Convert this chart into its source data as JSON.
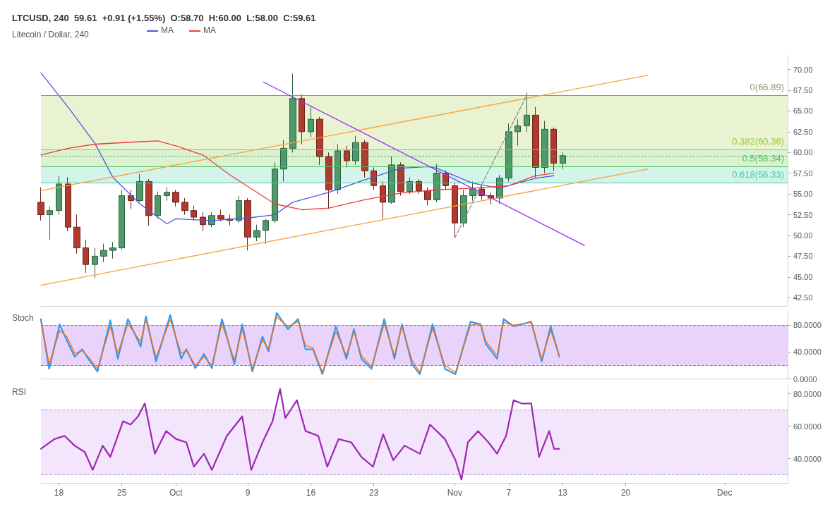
{
  "chart_data": [
    {
      "type": "candlestick",
      "title": "Litecoin / Dollar, 240",
      "subtitle": "LTCUSD, 240  59.61  +0.91 (+1.55%)  O:58.70  H:60.00  L:58.00  C:59.61",
      "x": [
        "--09-16",
        "--09-17",
        "--09-18",
        "--09-19",
        "--09-20",
        "--09-21",
        "--09-22",
        "--09-23",
        "--09-24",
        "--09-25",
        "--09-26",
        "--09-27",
        "--09-28",
        "--09-29",
        "--09-30",
        "--10-01",
        "--10-02",
        "--10-03",
        "--10-04",
        "--10-05",
        "--10-06",
        "--10-07",
        "--10-08",
        "--10-09",
        "--10-10",
        "--10-11",
        "--10-12",
        "--10-13",
        "--10-14",
        "--10-15",
        "--10-16",
        "--10-17",
        "--10-18",
        "--10-19",
        "--10-20",
        "--10-21",
        "--10-22",
        "--10-23",
        "--10-24",
        "--10-25",
        "--10-26",
        "--10-27",
        "--10-28",
        "--10-29",
        "--10-30",
        "--10-31",
        "--11-01",
        "--11-02",
        "--11-03",
        "--11-04",
        "--11-05",
        "--11-06",
        "--11-07",
        "--11-08",
        "--11-09",
        "--11-10",
        "--11-11",
        "--11-12",
        "--11-13"
      ],
      "ohlc": [
        [
          54,
          55.8,
          51.8,
          52.5
        ],
        [
          52.5,
          53.5,
          49.5,
          53
        ],
        [
          53,
          57.2,
          52.5,
          56.2
        ],
        [
          56.2,
          57,
          50.5,
          51
        ],
        [
          51,
          52.5,
          47.8,
          48.5
        ],
        [
          48.5,
          49.5,
          45.5,
          46.5
        ],
        [
          46.5,
          48.5,
          44.9,
          47.5
        ],
        [
          47.5,
          49,
          46.8,
          48.2
        ],
        [
          48.2,
          49.2,
          47.2,
          48.5
        ],
        [
          48.5,
          55.5,
          48.3,
          54.8
        ],
        [
          54.8,
          55.5,
          53.2,
          54.2
        ],
        [
          54.2,
          57.4,
          54,
          56.5
        ],
        [
          56.5,
          56.8,
          51.2,
          52.4
        ],
        [
          52.4,
          55.3,
          52,
          54.8
        ],
        [
          54.8,
          55.8,
          54.2,
          55.2
        ],
        [
          55.2,
          55.5,
          53.5,
          54
        ],
        [
          54,
          54.5,
          52.5,
          53
        ],
        [
          53,
          53.6,
          51.8,
          52.2
        ],
        [
          52.2,
          52.8,
          50.5,
          51.3
        ],
        [
          51.3,
          52.8,
          51,
          52.4
        ],
        [
          52.4,
          53.1,
          51.7,
          52
        ],
        [
          52,
          52.5,
          51.2,
          51.8
        ],
        [
          51.8,
          54.8,
          51.5,
          54.2
        ],
        [
          54.2,
          54.5,
          48.2,
          49.8
        ],
        [
          49.8,
          51.3,
          49.3,
          50.6
        ],
        [
          50.6,
          52,
          49,
          51.8
        ],
        [
          51.8,
          58.8,
          51.5,
          58
        ],
        [
          58,
          61.5,
          56.5,
          60.5
        ],
        [
          60.5,
          69.5,
          60,
          66.5
        ],
        [
          66.5,
          67,
          61,
          62.5
        ],
        [
          62.5,
          65.5,
          61.8,
          64
        ],
        [
          64,
          64.3,
          58.5,
          59.5
        ],
        [
          59.5,
          60,
          53.2,
          55.5
        ],
        [
          55.5,
          61,
          55,
          60.2
        ],
        [
          60.2,
          60.8,
          58.2,
          59
        ],
        [
          59,
          62,
          58.5,
          61.2
        ],
        [
          61.2,
          61.5,
          57,
          57.8
        ],
        [
          57.8,
          58.2,
          55.5,
          56
        ],
        [
          56,
          56.5,
          52,
          54
        ],
        [
          54,
          59.5,
          53.8,
          58.5
        ],
        [
          58.5,
          58.8,
          54.8,
          55.3
        ],
        [
          55.3,
          57,
          55,
          56.5
        ],
        [
          56.5,
          56.8,
          55,
          55.4
        ],
        [
          55.4,
          55.8,
          53.6,
          54.3
        ],
        [
          54.3,
          58.6,
          54,
          57.5
        ],
        [
          57.5,
          57.8,
          55.5,
          56
        ],
        [
          56,
          56.3,
          49.7,
          51.5
        ],
        [
          51.5,
          55.5,
          51,
          54.8
        ],
        [
          54.8,
          56.5,
          54.2,
          55.6
        ],
        [
          55.6,
          56,
          54.3,
          54.8
        ],
        [
          54.8,
          55.2,
          53.7,
          54.5
        ],
        [
          54.5,
          57.3,
          53.8,
          56.9
        ],
        [
          56.9,
          63.5,
          56.5,
          62.5
        ],
        [
          62.5,
          64,
          60.8,
          63.2
        ],
        [
          63.2,
          67.2,
          62.5,
          64.5
        ],
        [
          64.5,
          65.5,
          57,
          58.2
        ],
        [
          58.2,
          63.8,
          57.5,
          62.8
        ],
        [
          62.8,
          63,
          57.8,
          58.7
        ],
        [
          58.7,
          60,
          58,
          59.61
        ]
      ],
      "series": [
        {
          "type": "line",
          "name": "MA",
          "color": "#4a5bdc",
          "x": [
            "--09-16",
            "--09-19",
            "--09-22",
            "--09-24",
            "--09-27",
            "--09-30",
            "--10-01",
            "--10-05",
            "--10-09",
            "--10-12",
            "--10-14",
            "--10-18",
            "--10-22",
            "--10-26",
            "--10-29",
            "--10-30",
            "--11-03",
            "--11-06",
            "--11-07",
            "--11-10",
            "--11-12"
          ],
          "values": [
            69.6,
            65.5,
            61.1,
            57,
            53.8,
            51.4,
            52,
            51.8,
            52.1,
            52.5,
            54,
            55.2,
            56.7,
            58.1,
            58.3,
            58.1,
            56.3,
            55.7,
            56,
            56.9,
            57.2
          ]
        },
        {
          "type": "line",
          "name": "MA",
          "color": "#f03c3c",
          "x": [
            "--09-16",
            "--09-19",
            "--09-22",
            "--09-27",
            "--09-29",
            "--10-01",
            "--10-04",
            "--10-07",
            "--10-10",
            "--10-12",
            "--10-15",
            "--10-18",
            "--10-22",
            "--10-26",
            "--10-30",
            "--11-03",
            "--11-07",
            "--11-10",
            "--11-12"
          ],
          "values": [
            59.7,
            60.5,
            61,
            61.3,
            61.4,
            60.8,
            59.7,
            57.3,
            55.2,
            53.8,
            53.1,
            53.3,
            54.3,
            55.1,
            55.5,
            55.7,
            56,
            57.2,
            57.5
          ]
        },
        {
          "type": "line",
          "color": "#f7a33a",
          "x": [
            "--09-16",
            "--11-22T10:00"
          ],
          "values": [
            55.4,
            69.3
          ]
        },
        {
          "type": "line",
          "color": "#f7a33a",
          "x": [
            "--09-16",
            "--11-22T10:00"
          ],
          "values": [
            44,
            58
          ]
        },
        {
          "type": "line",
          "color": "#9b30ff",
          "x": [
            "--10-10T17:00",
            "--11-15T10:00"
          ],
          "values": [
            68.5,
            48.8
          ]
        },
        {
          "type": "line",
          "color": "#8c8c8c",
          "line_style": "dashed",
          "x": [
            "--11-01",
            "--11-09"
          ],
          "values": [
            49.7,
            66.89
          ]
        }
      ],
      "ref_lines": [
        {
          "axis": "y",
          "value": 66.89,
          "label": "0(66.89)",
          "color": "#8e9678"
        },
        {
          "axis": "y",
          "value": 60.36,
          "label": "0.382(60.36)",
          "color": "#98c93c"
        },
        {
          "axis": "y",
          "value": 58.34,
          "label": "0.5(58.34)",
          "color": "#4fc35f"
        },
        {
          "axis": "y",
          "value": 56.33,
          "label": "0.618(56.33)",
          "color": "#4cc9a0"
        },
        {
          "axis": "y",
          "value": 59.61,
          "label": null,
          "color": "#4e9a6a",
          "line_style": "dotted"
        }
      ],
      "bands": [
        {
          "axis": "y",
          "from": 60.36,
          "to": 66.89,
          "color": "#eaf3d1"
        },
        {
          "axis": "y",
          "from": 58.34,
          "to": 60.36,
          "color": "#daf2cf"
        },
        {
          "axis": "y",
          "from": 56.33,
          "to": 58.34,
          "color": "#d3f4ea"
        }
      ],
      "xlim": [
        "--09-16",
        "--12-08"
      ],
      "xticks": [
        {
          "value": "--09-18",
          "label": "18"
        },
        {
          "value": "--09-25",
          "label": "25"
        },
        {
          "value": "--10-01",
          "label": "Oct"
        },
        {
          "value": "--10-09",
          "label": "9"
        },
        {
          "value": "--10-16",
          "label": "16"
        },
        {
          "value": "--10-23",
          "label": "23"
        },
        {
          "value": "--11-01",
          "label": "Nov"
        },
        {
          "value": "--11-07",
          "label": "7"
        },
        {
          "value": "--11-13",
          "label": "13"
        },
        {
          "value": "--11-20",
          "label": "20"
        },
        {
          "value": "--12-01",
          "label": "Dec"
        }
      ],
      "ylim": [
        41.5,
        71.75
      ],
      "yticks": [
        {
          "value": 42.5,
          "label": "42.50"
        },
        {
          "value": 45,
          "label": "45.00"
        },
        {
          "value": 47.5,
          "label": "47.50"
        },
        {
          "value": 50,
          "label": "50.00"
        },
        {
          "value": 52.5,
          "label": "52.50"
        },
        {
          "value": 55,
          "label": "55.00"
        },
        {
          "value": 57.5,
          "label": "57.50"
        },
        {
          "value": 60,
          "label": "60.00"
        },
        {
          "value": 62.5,
          "label": "62.50"
        },
        {
          "value": 65,
          "label": "65.00"
        },
        {
          "value": 67.5,
          "label": "67.50"
        },
        {
          "value": 70,
          "label": "70.00"
        }
      ],
      "tick_labels": "y",
      "legend": "top left"
    },
    {
      "type": "line",
      "title": "Stoch",
      "x": [
        "--09-16T00:00",
        "--09-16T22:00",
        "--09-18T02:00",
        "--09-18T22:00",
        "--09-19T18:00",
        "--09-20T14:00",
        "--09-21T11:00",
        "--09-22T07:00",
        "--09-23T17:00",
        "--09-24T13:00",
        "--09-25T16:00",
        "--09-27T02:00",
        "--09-27T16:00",
        "--09-28T19:00",
        "--09-30T09:00",
        "--10-01T14:00",
        "--10-02T04:00",
        "--10-03T04:00",
        "--10-04T03:00",
        "--10-05T00:00",
        "--10-06T03:00",
        "--10-07T12:00",
        "--10-08T09:00",
        "--10-09T12:00",
        "--10-10T15:00",
        "--10-11T07:00",
        "--10-12T05:00",
        "--10-13T11:00",
        "--10-14T14:00",
        "--10-15T10:00",
        "--10-16T06:00",
        "--10-17T07:00",
        "--10-18T19:00",
        "--10-19T23:00",
        "--10-20T19:00",
        "--10-21T15:00",
        "--10-22T18:00",
        "--10-24T04:00",
        "--10-25T07:00",
        "--10-26T03:00",
        "--10-27T06:00",
        "--10-28T03:00",
        "--10-29T13:00",
        "--10-30T22:00",
        "--11-01T02:00",
        "--11-02T18:00",
        "--11-03T21:00",
        "--11-04T11:00",
        "--11-05T17:00",
        "--11-06T10:00",
        "--11-07T13:00",
        "--11-09T12:00",
        "--11-10T16:00",
        "--11-11T16:00",
        "--11-12T15:00"
      ],
      "series": [
        {
          "color": "#2b9af3",
          "values": [
            89,
            15,
            81,
            56,
            33,
            44,
            26,
            11,
            87,
            30,
            89,
            48,
            93,
            26,
            95,
            30,
            44,
            16,
            37,
            16,
            89,
            22,
            81,
            11,
            63,
            41,
            98,
            74,
            89,
            44,
            44,
            7,
            78,
            30,
            74,
            30,
            15,
            89,
            30,
            81,
            22,
            7,
            81,
            15,
            7,
            85,
            81,
            52,
            30,
            89,
            78,
            85,
            26,
            78,
            33
          ]
        },
        {
          "color": "#ff6d00",
          "values": [
            85,
            22,
            72,
            62,
            38,
            42,
            30,
            15,
            78,
            38,
            82,
            55,
            88,
            32,
            88,
            38,
            42,
            20,
            33,
            20,
            82,
            28,
            74,
            15,
            58,
            45,
            92,
            78,
            85,
            50,
            46,
            10,
            70,
            35,
            70,
            35,
            18,
            82,
            35,
            78,
            28,
            10,
            75,
            20,
            10,
            80,
            82,
            56,
            35,
            84,
            80,
            84,
            30,
            72,
            35
          ]
        }
      ],
      "ref_lines": [
        {
          "axis": "y",
          "value": 80,
          "label": null,
          "color": "#8c7aa0",
          "line_style": "dashed"
        },
        {
          "axis": "y",
          "value": 20,
          "label": null,
          "color": "#8c7aa0",
          "line_style": "dashed"
        }
      ],
      "bands": [
        {
          "axis": "y",
          "from": 20,
          "to": 80,
          "color": "#ead3fb"
        }
      ],
      "xlim": [
        "--09-16",
        "--12-08"
      ],
      "xticks": [
        {
          "value": "--09-18",
          "label": "18"
        },
        {
          "value": "--09-25",
          "label": "25"
        },
        {
          "value": "--10-01",
          "label": "Oct"
        },
        {
          "value": "--10-09",
          "label": "9"
        },
        {
          "value": "--10-16",
          "label": "16"
        },
        {
          "value": "--10-23",
          "label": "23"
        },
        {
          "value": "--11-01",
          "label": "Nov"
        },
        {
          "value": "--11-07",
          "label": "7"
        },
        {
          "value": "--11-13",
          "label": "13"
        },
        {
          "value": "--11-20",
          "label": "20"
        },
        {
          "value": "--12-01",
          "label": "Dec"
        }
      ],
      "ylim": [
        0,
        100
      ],
      "yticks": [
        {
          "value": 0,
          "label": "0.0000"
        },
        {
          "value": 40,
          "label": "40.0000"
        },
        {
          "value": 80,
          "label": "80.0000"
        }
      ],
      "tick_labels": "y"
    },
    {
      "type": "line",
      "title": "RSI",
      "x": [
        "--09-16T00:00",
        "--09-17T12:00",
        "--09-18T15:00",
        "--09-19T18:00",
        "--09-20T21:00",
        "--09-21T18:00",
        "--09-22T21:00",
        "--09-23T17:00",
        "--09-25T03:00",
        "--09-25T23:00",
        "--09-26T19:00",
        "--09-27T13:00",
        "--09-28T16:00",
        "--09-29T22:00",
        "--10-01T01:00",
        "--10-02T04:00",
        "--10-03T00:00",
        "--10-04T03:00",
        "--10-05T00:00",
        "--10-06T16:00",
        "--10-08T09:00",
        "--10-09T09:00",
        "--10-10T15:00",
        "--10-11T18:00",
        "--10-12T14:00",
        "--10-13T04:00",
        "--10-14T11:00",
        "--10-15T10:00",
        "--10-16T20:00",
        "--10-17T20:00",
        "--10-19T02:00",
        "--10-20T12:00",
        "--10-21T15:00",
        "--10-22T22:00",
        "--10-24T01:00",
        "--10-25T04:00",
        "--10-26T10:00",
        "--10-28T03:00",
        "--10-29T06:00",
        "--10-30T22:00",
        "--11-01T02:00",
        "--11-01T18:00",
        "--11-02T11:00",
        "--11-03T14:00",
        "--11-04T18:00",
        "--11-05T17:00",
        "--11-06T17:00",
        "--11-07T13:00",
        "--11-08T10:00",
        "--11-09T12:00",
        "--11-10T09:00",
        "--11-11T12:00",
        "--11-12T01:00",
        "--11-12T15:00"
      ],
      "series": [
        {
          "color": "#9c27b0",
          "values": [
            46,
            52,
            54,
            48,
            44,
            33,
            48,
            41,
            63,
            61,
            66,
            74,
            43,
            57,
            52,
            50,
            35,
            43,
            33,
            54,
            66,
            33,
            50,
            63,
            83,
            65,
            76,
            57,
            54,
            35,
            52,
            50,
            41,
            35,
            55,
            39,
            48,
            43,
            61,
            52,
            39,
            27,
            50,
            57,
            50,
            43,
            54,
            76,
            74,
            74,
            41,
            57,
            46,
            46
          ]
        }
      ],
      "ref_lines": [
        {
          "axis": "y",
          "value": 70,
          "label": null,
          "color": "#b59ac4",
          "line_style": "dashed"
        },
        {
          "axis": "y",
          "value": 30,
          "label": null,
          "color": "#b59ac4",
          "line_style": "dashed"
        }
      ],
      "bands": [
        {
          "axis": "y",
          "from": 30,
          "to": 70,
          "color": "#f3e5fc"
        }
      ],
      "xlim": [
        "--09-16",
        "--12-08"
      ],
      "xticks": [
        {
          "value": "--09-18",
          "label": "18"
        },
        {
          "value": "--09-25",
          "label": "25"
        },
        {
          "value": "--10-01",
          "label": "Oct"
        },
        {
          "value": "--10-09",
          "label": "9"
        },
        {
          "value": "--10-16",
          "label": "16"
        },
        {
          "value": "--10-23",
          "label": "23"
        },
        {
          "value": "--11-01",
          "label": "Nov"
        },
        {
          "value": "--11-07",
          "label": "7"
        },
        {
          "value": "--11-13",
          "label": "13"
        },
        {
          "value": "--11-20",
          "label": "20"
        },
        {
          "value": "--12-01",
          "label": "Dec"
        }
      ],
      "ylim": [
        25,
        85
      ],
      "yticks": [
        {
          "value": 40,
          "label": "40.0000"
        },
        {
          "value": 60,
          "label": "60.0000"
        },
        {
          "value": 80,
          "label": "80.0000"
        }
      ]
    }
  ]
}
